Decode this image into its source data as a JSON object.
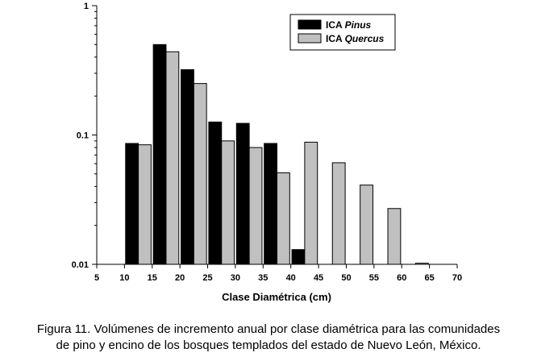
{
  "chart_data": {
    "type": "bar",
    "xlabel": "Clase Diamétrica (cm)",
    "ylabel": "",
    "x_ticks": [
      5,
      10,
      15,
      20,
      25,
      30,
      35,
      40,
      45,
      50,
      55,
      60,
      65,
      70
    ],
    "xlim": [
      5,
      70
    ],
    "ylim": [
      0.01,
      1
    ],
    "y_scale": "log",
    "y_ticks": [
      {
        "value": 0.01,
        "label": "0.01"
      },
      {
        "value": 0.1,
        "label": "0.1"
      },
      {
        "value": 1,
        "label": "1"
      }
    ],
    "categories": [
      12.5,
      17.5,
      22.5,
      27.5,
      32.5,
      37.5,
      42.5,
      47.5,
      52.5,
      57.5,
      62.5
    ],
    "series": [
      {
        "prefix": "ICA ",
        "name_italic": "Pinus",
        "color": "#000000",
        "values": [
          0.086,
          0.5,
          0.32,
          0.126,
          0.123,
          0.086,
          0.013,
          null,
          null,
          null,
          null
        ]
      },
      {
        "prefix": "ICA ",
        "name_italic": "Quercus",
        "color": "#c0c0c0",
        "values": [
          0.084,
          0.44,
          0.25,
          0.09,
          0.08,
          0.051,
          0.088,
          0.061,
          0.041,
          0.027,
          0.0102
        ]
      }
    ],
    "legend_position": "top-right",
    "grid": false
  },
  "caption": {
    "line1": "Figura 11. Volúmenes de incremento anual por clase diamétrica para las comunidades",
    "line2": "de pino y encino de los bosques templados del estado de Nuevo León, México."
  }
}
